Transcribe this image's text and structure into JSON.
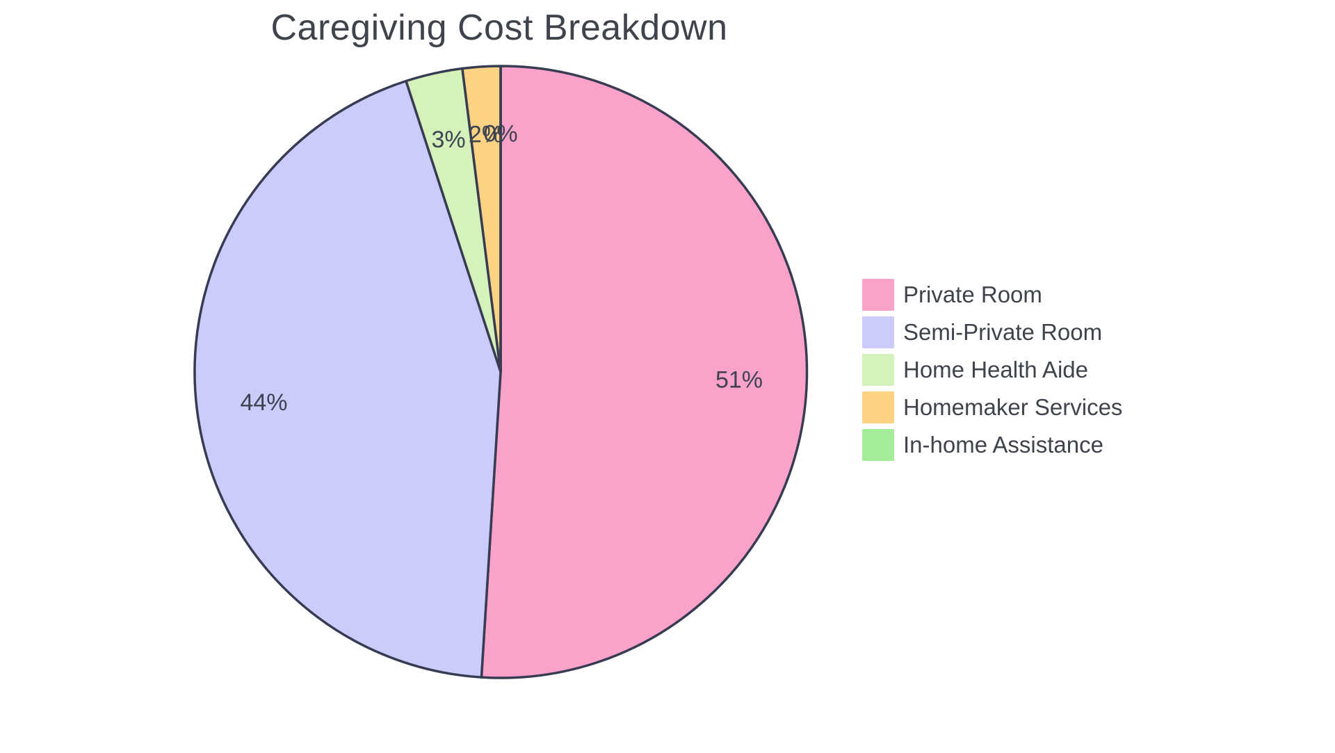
{
  "page": {
    "background_color": "#ffffff"
  },
  "chart_data": {
    "type": "pie",
    "title": "Caregiving Cost Breakdown",
    "labels": [
      "Private Room",
      "Semi-Private Room",
      "Home Health Aide",
      "Homemaker Services",
      "In-home Assistance"
    ],
    "values": [
      51,
      44,
      3,
      2,
      0
    ],
    "percent_labels": [
      "51%",
      "44%",
      "3%",
      "2%",
      "0%"
    ],
    "colors": [
      "#fba2ca",
      "#cbccfc",
      "#d6f2bb",
      "#fcd283",
      "#a5ec9b"
    ],
    "slice_names": [
      "private-room",
      "semi-private-room",
      "home-health-aide",
      "homemaker-services",
      "in-home-assistance"
    ],
    "outline_color": "#373c52",
    "label_color": "#3e4352",
    "title_color": "#3e434c",
    "legend_text_color": "#3f444c",
    "start_angle_deg": 0,
    "direction": "clockwise",
    "legend_position": "right",
    "labels_inside": true
  }
}
